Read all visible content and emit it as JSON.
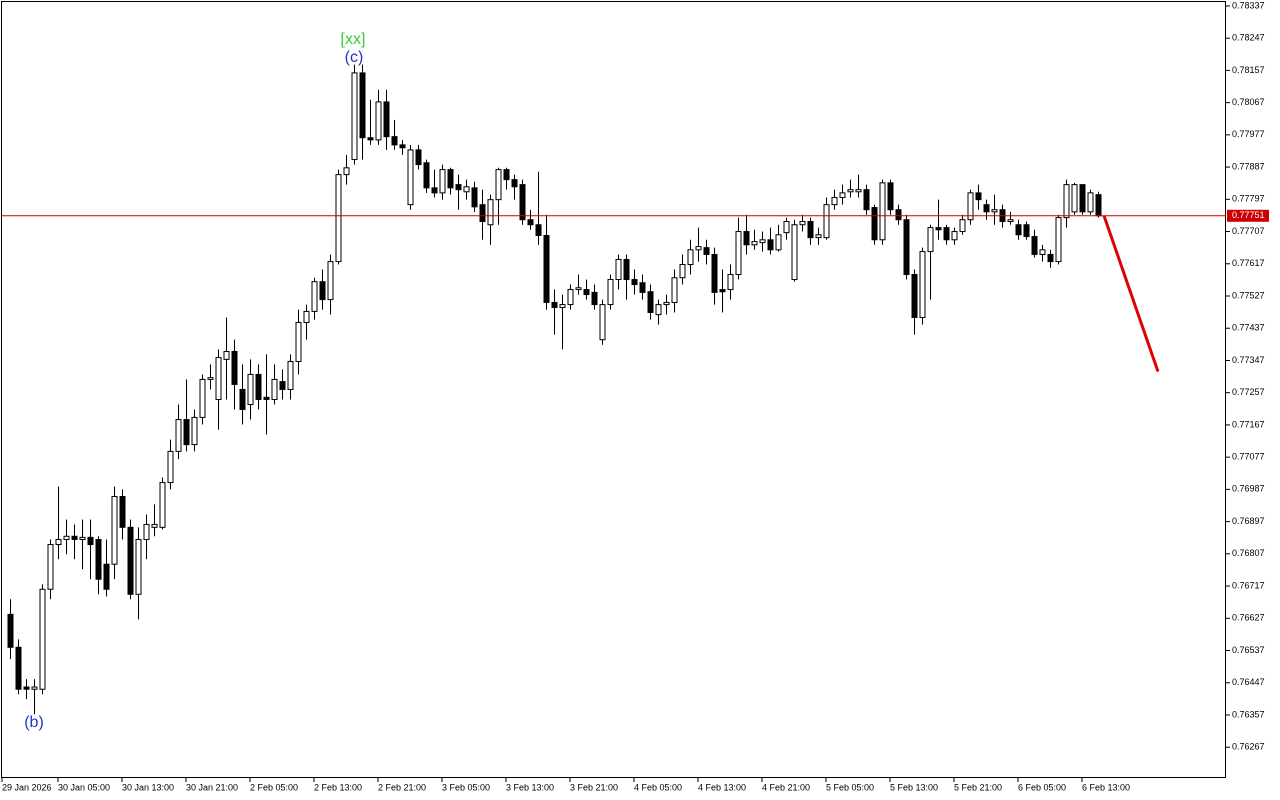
{
  "chart_data": {
    "type": "candlestick",
    "categories": [
      "29 Jan 2026",
      null,
      null,
      null,
      null,
      null,
      null,
      "30 Jan 05:00",
      null,
      null,
      null,
      null,
      null,
      null,
      null,
      "30 Jan 13:00",
      null,
      null,
      null,
      null,
      null,
      null,
      null,
      "30 Jan 21:00",
      null,
      null,
      null,
      null,
      null,
      null,
      null,
      "2 Feb 05:00",
      null,
      null,
      null,
      null,
      null,
      null,
      null,
      "2 Feb 13:00",
      null,
      null,
      null,
      null,
      null,
      null,
      null,
      "2 Feb 21:00",
      null,
      null,
      null,
      null,
      null,
      null,
      null,
      "3 Feb 05:00",
      null,
      null,
      null,
      null,
      null,
      null,
      null,
      "3 Feb 13:00",
      null,
      null,
      null,
      null,
      null,
      null,
      null,
      "3 Feb 21:00",
      null,
      null,
      null,
      null,
      null,
      null,
      null,
      "4 Feb 05:00",
      null,
      null,
      null,
      null,
      null,
      null,
      null,
      "4 Feb 13:00",
      null,
      null,
      null,
      null,
      null,
      null,
      null,
      "4 Feb 21:00",
      null,
      null,
      null,
      null,
      null,
      null,
      null,
      "5 Feb 05:00",
      null,
      null,
      null,
      null,
      null,
      null,
      null,
      "5 Feb 13:00",
      null,
      null,
      null,
      null,
      null,
      null,
      null,
      "5 Feb 21:00",
      null,
      null,
      null,
      null,
      null,
      null,
      null,
      "6 Feb 05:00",
      null,
      null,
      null,
      null,
      null,
      null,
      null,
      "6 Feb 13:00",
      null
    ],
    "open": [
      0.76638,
      0.76546,
      0.76435,
      0.76429,
      0.76429,
      0.76708,
      0.76833,
      0.76847,
      0.76856,
      0.76847,
      0.76853,
      0.76847,
      0.76778,
      0.76778,
      0.76967,
      0.76881,
      0.76694,
      0.76847,
      0.76881,
      0.76881,
      0.77006,
      0.77093,
      0.77182,
      0.77112,
      0.77188,
      0.77294,
      0.77238,
      0.7735,
      0.77372,
      0.77266,
      0.77224,
      0.77308,
      0.77244,
      0.77238,
      0.77288,
      0.77266,
      0.77344,
      0.77453,
      0.77484,
      0.77567,
      0.77517,
      0.77623,
      0.77866,
      0.77908,
      0.7815,
      0.77969,
      0.77963,
      0.78069,
      0.77972,
      0.77949,
      0.77782,
      0.77935,
      0.77899,
      0.77829,
      0.77815,
      0.7788,
      0.77838,
      0.77818,
      0.77829,
      0.77782,
      0.77726,
      0.77796,
      0.7788,
      0.77852,
      0.77838,
      0.7774,
      0.77726,
      0.77696,
      0.77509,
      0.77495,
      0.77503,
      0.77545,
      0.77545,
      0.77537,
      0.77405,
      0.77503,
      0.77573,
      0.77629,
      0.77573,
      0.77564,
      0.77539,
      0.77475,
      0.77503,
      0.77509,
      0.77578,
      0.77615,
      0.77656,
      0.77662,
      0.77643,
      0.77545,
      0.77545,
      0.77587,
      0.77707,
      0.7767,
      0.77676,
      0.77684,
      0.77656,
      0.77704,
      0.77573,
      0.77726,
      0.77735,
      0.7769,
      0.7769,
      0.77782,
      0.77802,
      0.77818,
      0.77818,
      0.77824,
      0.77774,
      0.77684,
      0.77843,
      0.77768,
      0.7774,
      0.77587,
      0.77467,
      0.77651,
      0.77718,
      0.77718,
      0.77684,
      0.77707,
      0.7774,
      0.77815,
      0.77782,
      0.77762,
      0.77768,
      0.77735,
      0.77726,
      0.77726,
      0.77693,
      0.77643,
      0.77643,
      0.77623,
      0.77746,
      0.77762,
      0.77838,
      0.77762,
      0.7781
    ],
    "high": [
      0.7668,
      0.76568,
      0.76457,
      0.76457,
      0.76722,
      0.76847,
      0.76995,
      0.76903,
      0.76889,
      0.76903,
      0.76903,
      0.76856,
      0.76847,
      0.76995,
      0.76987,
      0.76903,
      0.76881,
      0.76917,
      0.76945,
      0.7702,
      0.77126,
      0.77224,
      0.77294,
      0.7721,
      0.77308,
      0.77336,
      0.77378,
      0.77467,
      0.77405,
      0.77336,
      0.7735,
      0.77336,
      0.77364,
      0.77336,
      0.77322,
      0.77364,
      0.77489,
      0.77503,
      0.77578,
      0.77601,
      0.77643,
      0.7788,
      0.77921,
      0.78173,
      0.78173,
      0.78075,
      0.78103,
      0.78103,
      0.78019,
      0.77963,
      0.77949,
      0.77949,
      0.77908,
      0.7788,
      0.77894,
      0.77885,
      0.77866,
      0.77852,
      0.77846,
      0.77824,
      0.7781,
      0.77885,
      0.77885,
      0.77866,
      0.77852,
      0.77768,
      0.77874,
      0.77754,
      0.77545,
      0.77531,
      0.77559,
      0.77587,
      0.77573,
      0.77559,
      0.77517,
      0.77587,
      0.77643,
      0.77643,
      0.77601,
      0.77587,
      0.77559,
      0.77517,
      0.77531,
      0.77601,
      0.77643,
      0.77684,
      0.77718,
      0.77684,
      0.77662,
      0.77601,
      0.77615,
      0.77746,
      0.77754,
      0.77712,
      0.77707,
      0.77718,
      0.77726,
      0.77746,
      0.7774,
      0.77754,
      0.77746,
      0.77718,
      0.77802,
      0.77824,
      0.77838,
      0.77852,
      0.77866,
      0.77838,
      0.77782,
      0.77852,
      0.77852,
      0.77782,
      0.77754,
      0.77601,
      0.77662,
      0.77726,
      0.77796,
      0.77726,
      0.77718,
      0.77754,
      0.77824,
      0.77838,
      0.77796,
      0.7781,
      0.77782,
      0.77762,
      0.7774,
      0.77735,
      0.77712,
      0.7767,
      0.77656,
      0.77754,
      0.77852,
      0.77843,
      0.77838,
      0.77824,
      0.77818
    ],
    "low": [
      0.76513,
      0.76415,
      0.76401,
      0.76359,
      0.76415,
      0.7668,
      0.76792,
      0.76806,
      0.76792,
      0.76764,
      0.76736,
      0.76694,
      0.76688,
      0.76736,
      0.76847,
      0.7668,
      0.76624,
      0.76792,
      0.76856,
      0.76875,
      0.76987,
      0.77071,
      0.77093,
      0.77093,
      0.77168,
      0.77266,
      0.77154,
      0.77238,
      0.7721,
      0.77168,
      0.77182,
      0.7721,
      0.7714,
      0.77224,
      0.77238,
      0.77238,
      0.77308,
      0.77405,
      0.77461,
      0.77489,
      0.77475,
      0.77615,
      0.77838,
      0.77894,
      0.77908,
      0.77949,
      0.77949,
      0.77935,
      0.77935,
      0.77921,
      0.77768,
      0.7788,
      0.77815,
      0.77802,
      0.77796,
      0.7781,
      0.77768,
      0.77796,
      0.77762,
      0.77684,
      0.7767,
      0.77726,
      0.77824,
      0.77796,
      0.77726,
      0.77712,
      0.7767,
      0.77489,
      0.77419,
      0.77378,
      0.77489,
      0.77531,
      0.77517,
      0.77489,
      0.77391,
      0.77489,
      0.77545,
      0.77517,
      0.77531,
      0.77517,
      0.77461,
      0.77447,
      0.77475,
      0.77481,
      0.77559,
      0.77587,
      0.77623,
      0.77615,
      0.77503,
      0.77481,
      0.77517,
      0.77573,
      0.77643,
      0.77656,
      0.77651,
      0.77643,
      0.77651,
      0.77684,
      0.77567,
      0.77707,
      0.7767,
      0.7767,
      0.77684,
      0.77768,
      0.77782,
      0.77802,
      0.77802,
      0.77754,
      0.7767,
      0.7767,
      0.77754,
      0.77726,
      0.77573,
      0.77419,
      0.77447,
      0.77517,
      0.77684,
      0.7767,
      0.7767,
      0.77698,
      0.77726,
      0.77768,
      0.7774,
      0.77726,
      0.77718,
      0.77726,
      0.77684,
      0.77684,
      0.77634,
      0.77623,
      0.77606,
      0.77615,
      0.77718,
      0.77754,
      0.77754,
      0.77754,
      0.77746
    ],
    "close": [
      0.76546,
      0.76429,
      0.76429,
      0.76435,
      0.76708,
      0.76833,
      0.76847,
      0.76856,
      0.76847,
      0.76853,
      0.76833,
      0.76736,
      0.76708,
      0.76967,
      0.76881,
      0.76694,
      0.76847,
      0.76889,
      0.76889,
      0.77006,
      0.77093,
      0.77182,
      0.77112,
      0.77188,
      0.77294,
      0.77299,
      0.77355,
      0.77372,
      0.7728,
      0.7721,
      0.77308,
      0.77238,
      0.77238,
      0.77294,
      0.77266,
      0.77344,
      0.77453,
      0.77484,
      0.77567,
      0.77517,
      0.77623,
      0.77866,
      0.77885,
      0.7815,
      0.77969,
      0.77963,
      0.78069,
      0.77972,
      0.77949,
      0.77941,
      0.77935,
      0.77894,
      0.77829,
      0.77815,
      0.7788,
      0.77829,
      0.77824,
      0.77832,
      0.77776,
      0.77735,
      0.77796,
      0.7788,
      0.77852,
      0.77832,
      0.7774,
      0.77726,
      0.77696,
      0.77509,
      0.77495,
      0.77503,
      0.77545,
      0.7755,
      0.77531,
      0.77503,
      0.77503,
      0.77573,
      0.77629,
      0.77573,
      0.77559,
      0.77537,
      0.77481,
      0.77503,
      0.77509,
      0.77578,
      0.77615,
      0.77656,
      0.77665,
      0.77643,
      0.77537,
      0.77539,
      0.77587,
      0.77707,
      0.7767,
      0.77679,
      0.77684,
      0.77656,
      0.77698,
      0.77735,
      0.77726,
      0.77735,
      0.7769,
      0.77698,
      0.77782,
      0.77802,
      0.77815,
      0.77824,
      0.77824,
      0.77768,
      0.77684,
      0.77843,
      0.77768,
      0.7774,
      0.77587,
      0.77467,
      0.77651,
      0.77718,
      0.77712,
      0.77684,
      0.77707,
      0.7774,
      0.77815,
      0.77796,
      0.77762,
      0.77768,
      0.77735,
      0.7774,
      0.77698,
      0.77693,
      0.77643,
      0.77656,
      0.77623,
      0.77746,
      0.77838,
      0.77838,
      0.77762,
      0.77815,
      0.77751
    ],
    "up_color": "#ffffff",
    "down_color": "#000000",
    "ylim": [
      0.76181,
      0.78348
    ],
    "yticks": [
      0.78337,
      0.78247,
      0.78157,
      0.78067,
      0.77977,
      0.77887,
      0.77797,
      0.77707,
      0.77617,
      0.77527,
      0.77437,
      0.77347,
      0.77257,
      0.77167,
      0.77077,
      0.76987,
      0.76897,
      0.76807,
      0.76717,
      0.76627,
      0.76537,
      0.76447,
      0.76357,
      0.76267
    ],
    "grid": false,
    "current_price": 0.77751,
    "current_price_color": "#cc0000",
    "forecast": {
      "color": "#e00000",
      "values": [
        0.77751,
        0.77316
      ]
    },
    "annotations": [
      {
        "text": "[xx]",
        "color": "#33cc33"
      },
      {
        "text": "(c)",
        "color": "#2233cc"
      },
      {
        "text": "(b)",
        "color": "#2233cc"
      }
    ]
  }
}
